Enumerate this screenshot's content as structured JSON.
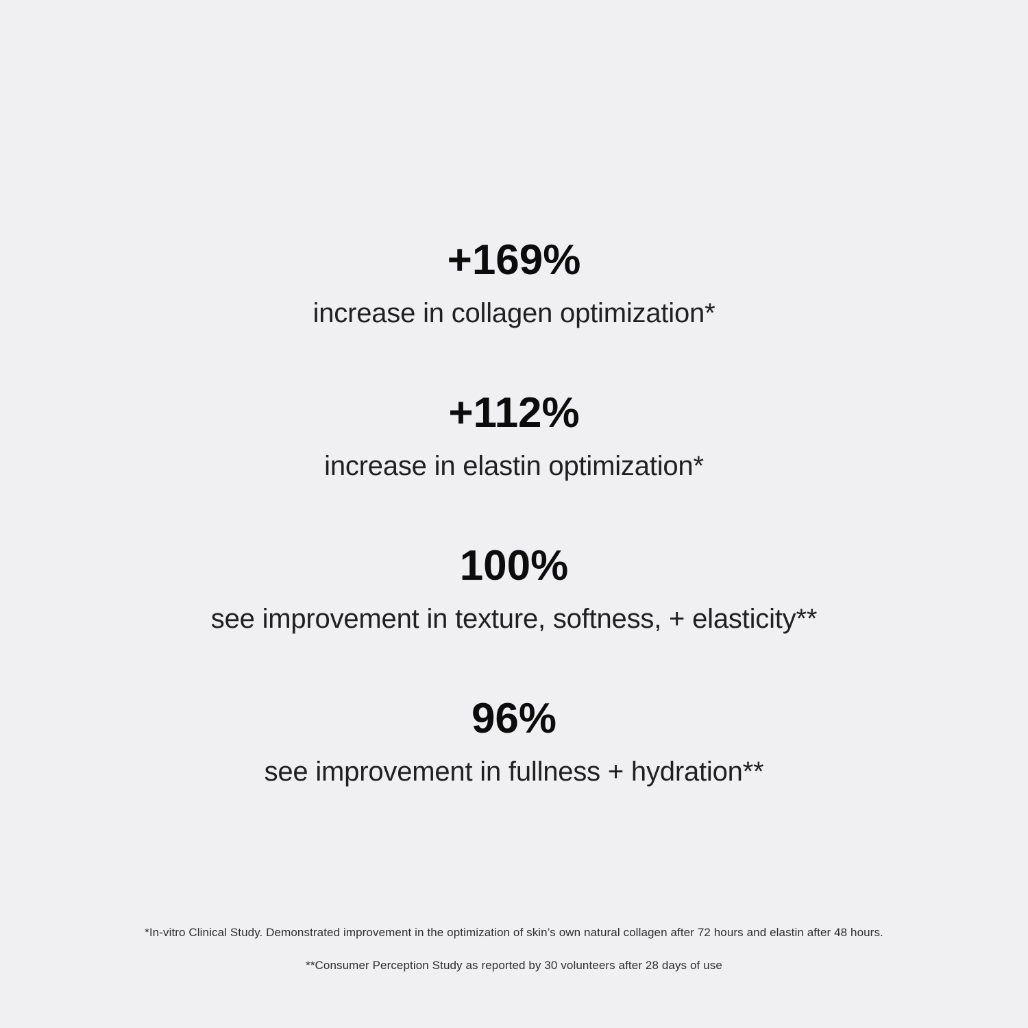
{
  "colors": {
    "background": "#f0f0f2",
    "number_text": "#0c0c0c",
    "label_text": "#202020",
    "footnote_text": "#2d2d2d"
  },
  "stats": [
    {
      "value": "+169%",
      "label": "increase in collagen optimization*"
    },
    {
      "value": "+112%",
      "label": "increase in elastin optimization*"
    },
    {
      "value": "100%",
      "label": "see improvement in texture, softness, + elasticity**"
    },
    {
      "value": "96%",
      "label": "see improvement in fullness + hydration**"
    }
  ],
  "footnotes": [
    "*In-vitro Clinical Study. Demonstrated improvement in the optimization of skin’s own natural collagen after 72 hours and elastin after 48 hours.",
    "**Consumer Perception Study as reported by 30 volunteers after 28 days of use"
  ]
}
